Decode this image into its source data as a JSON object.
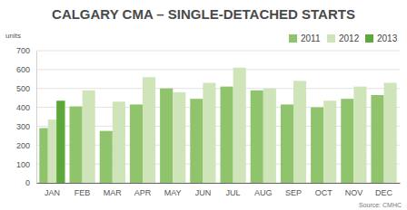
{
  "chart_data": {
    "type": "bar",
    "title": "CALGARY CMA – SINGLE-DETACHED STARTS",
    "ylabel": "units",
    "annotations": [
      "Source: CMHC"
    ],
    "categories": [
      "JAN",
      "FEB",
      "MAR",
      "APR",
      "MAY",
      "JUN",
      "JUL",
      "AUG",
      "SEP",
      "OCT",
      "NOV",
      "DEC"
    ],
    "series": [
      {
        "name": "2011",
        "color": "#8fc46c",
        "values": [
          290,
          405,
          275,
          415,
          500,
          445,
          510,
          490,
          415,
          400,
          445,
          465
        ]
      },
      {
        "name": "2012",
        "color": "#cfe5b9",
        "values": [
          335,
          490,
          430,
          560,
          480,
          530,
          610,
          500,
          540,
          435,
          510,
          530
        ]
      },
      {
        "name": "2013",
        "color": "#5da83a",
        "values": [
          435,
          null,
          null,
          null,
          null,
          null,
          null,
          null,
          null,
          null,
          null,
          null
        ]
      }
    ],
    "ylim": [
      0,
      700
    ],
    "yticks": [
      0,
      100,
      200,
      300,
      400,
      500,
      600,
      700
    ],
    "grid": true,
    "legend": "top-right"
  }
}
